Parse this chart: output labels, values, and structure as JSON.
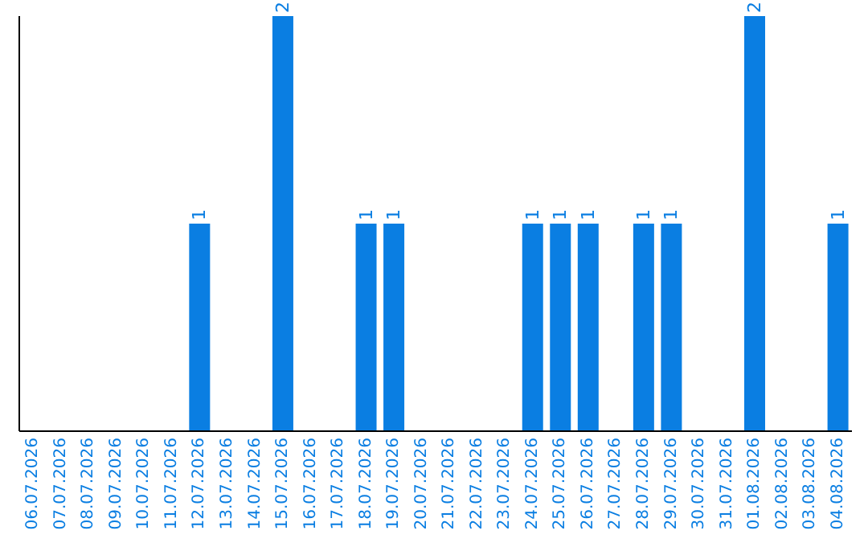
{
  "chart_data": {
    "type": "bar",
    "categories": [
      "06.07.2026",
      "07.07.2026",
      "08.07.2026",
      "09.07.2026",
      "10.07.2026",
      "11.07.2026",
      "12.07.2026",
      "13.07.2026",
      "14.07.2026",
      "15.07.2026",
      "16.07.2026",
      "17.07.2026",
      "18.07.2026",
      "19.07.2026",
      "20.07.2026",
      "21.07.2026",
      "22.07.2026",
      "23.07.2026",
      "24.07.2026",
      "25.07.2026",
      "26.07.2026",
      "27.07.2026",
      "28.07.2026",
      "29.07.2026",
      "30.07.2026",
      "31.07.2026",
      "01.08.2026",
      "02.08.2026",
      "03.08.2026",
      "04.08.2026"
    ],
    "values": [
      0,
      0,
      0,
      0,
      0,
      0,
      1,
      0,
      0,
      2,
      0,
      0,
      1,
      1,
      0,
      0,
      0,
      0,
      1,
      1,
      1,
      0,
      1,
      1,
      0,
      0,
      2,
      0,
      0,
      1
    ],
    "value_labels": [
      null,
      null,
      null,
      null,
      null,
      null,
      "1",
      null,
      null,
      "2",
      null,
      null,
      "1",
      "1",
      null,
      null,
      null,
      null,
      "1",
      "1",
      "1",
      null,
      "1",
      "1",
      null,
      null,
      "2",
      null,
      null,
      "1"
    ],
    "color": "#0a7ee2",
    "grid": false,
    "legend": false
  }
}
